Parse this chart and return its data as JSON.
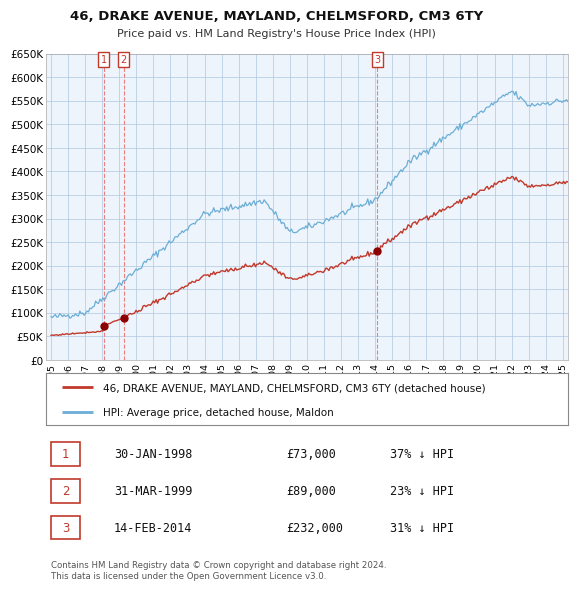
{
  "title": "46, DRAKE AVENUE, MAYLAND, CHELMSFORD, CM3 6TY",
  "subtitle": "Price paid vs. HM Land Registry's House Price Index (HPI)",
  "ylim": [
    0,
    650000
  ],
  "yticks": [
    0,
    50000,
    100000,
    150000,
    200000,
    250000,
    300000,
    350000,
    400000,
    450000,
    500000,
    550000,
    600000,
    650000
  ],
  "ytick_labels": [
    "£0",
    "£50K",
    "£100K",
    "£150K",
    "£200K",
    "£250K",
    "£300K",
    "£350K",
    "£400K",
    "£450K",
    "£500K",
    "£550K",
    "£600K",
    "£650K"
  ],
  "hpi_color": "#6baed6",
  "price_color": "#c0392b",
  "background_color": "#ffffff",
  "grid_color": "#cccccc",
  "xlim_start": 1995.0,
  "xlim_end": 2025.3,
  "sales": [
    {
      "label": "1",
      "date": "30-JAN-1998",
      "price": 73000,
      "year": 1998.08,
      "hpi_pct": "37% ↓ HPI"
    },
    {
      "label": "2",
      "date": "31-MAR-1999",
      "price": 89000,
      "year": 1999.25,
      "hpi_pct": "23% ↓ HPI"
    },
    {
      "label": "3",
      "date": "14-FEB-2014",
      "price": 232000,
      "year": 2014.12,
      "hpi_pct": "31% ↓ HPI"
    }
  ],
  "legend_price_label": "46, DRAKE AVENUE, MAYLAND, CHELMSFORD, CM3 6TY (detached house)",
  "legend_hpi_label": "HPI: Average price, detached house, Maldon",
  "footnote": "Contains HM Land Registry data © Crown copyright and database right 2024.\nThis data is licensed under the Open Government Licence v3.0."
}
